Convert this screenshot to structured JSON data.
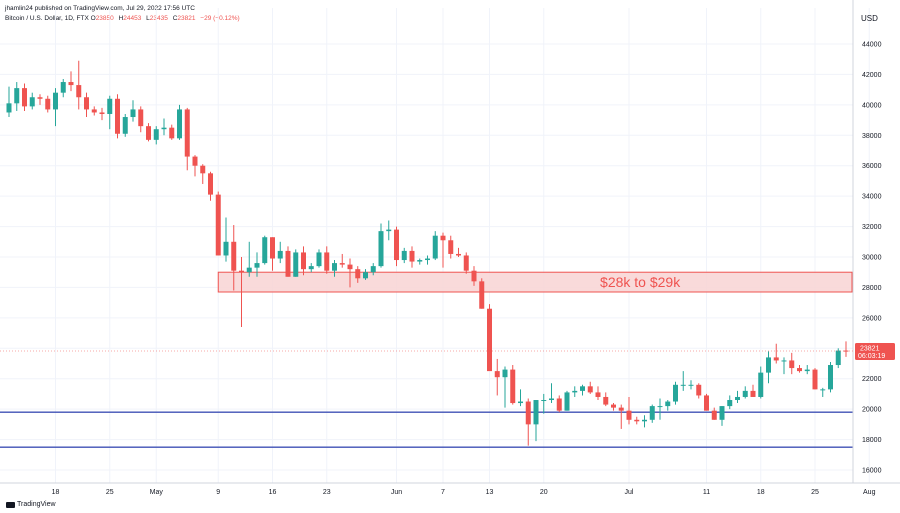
{
  "header": {
    "published_by": "jhamlin24 published on TradingView.com, Jul 29, 2022 17:56 UTC"
  },
  "legend": {
    "symbol": "Bitcoin / U.S. Dollar, 1D, FTX",
    "open_label": "O",
    "open": "23850",
    "high_label": "H",
    "high": "24453",
    "low_label": "L",
    "low": "23435",
    "close_label": "C",
    "close": "23821",
    "change": "−29 (−0.12%)"
  },
  "brand": {
    "name": "TradingView"
  },
  "colors": {
    "up": "#26a69a",
    "down": "#ef5350",
    "support": "#3f51b5",
    "zone_fill": "#f8d3d3",
    "zone_border": "#ef5350"
  },
  "chart_data": {
    "type": "candlestick",
    "y_axis_label": "USD",
    "ylim": [
      15000,
      45000
    ],
    "yticks": [
      16000,
      18000,
      20000,
      22000,
      24000,
      26000,
      28000,
      30000,
      32000,
      34000,
      36000,
      38000,
      40000,
      42000,
      44000
    ],
    "x_start": "2022-04-12",
    "x_ticks": [
      {
        "date": "2022-04-18",
        "label": "18"
      },
      {
        "date": "2022-04-25",
        "label": "25"
      },
      {
        "date": "2022-05-01",
        "label": "May"
      },
      {
        "date": "2022-05-09",
        "label": "9"
      },
      {
        "date": "2022-05-16",
        "label": "16"
      },
      {
        "date": "2022-05-23",
        "label": "23"
      },
      {
        "date": "2022-06-01",
        "label": "Jun"
      },
      {
        "date": "2022-06-07",
        "label": "7"
      },
      {
        "date": "2022-06-13",
        "label": "13"
      },
      {
        "date": "2022-06-20",
        "label": "20"
      },
      {
        "date": "2022-07-01",
        "label": "Jul"
      },
      {
        "date": "2022-07-11",
        "label": "11"
      },
      {
        "date": "2022-07-18",
        "label": "18"
      },
      {
        "date": "2022-07-25",
        "label": "25"
      },
      {
        "date": "2022-08-01",
        "label": "Aug"
      }
    ],
    "candles": [
      {
        "date": "2022-04-12",
        "o": 39500,
        "h": 41200,
        "l": 39200,
        "c": 40100
      },
      {
        "date": "2022-04-13",
        "o": 40100,
        "h": 41500,
        "l": 39600,
        "c": 41100
      },
      {
        "date": "2022-04-14",
        "o": 41100,
        "h": 41400,
        "l": 39600,
        "c": 39900
      },
      {
        "date": "2022-04-15",
        "o": 39900,
        "h": 40800,
        "l": 39700,
        "c": 40500
      },
      {
        "date": "2022-04-16",
        "o": 40500,
        "h": 40700,
        "l": 40000,
        "c": 40400
      },
      {
        "date": "2022-04-17",
        "o": 40400,
        "h": 40600,
        "l": 39500,
        "c": 39700
      },
      {
        "date": "2022-04-18",
        "o": 39700,
        "h": 41100,
        "l": 38600,
        "c": 40800
      },
      {
        "date": "2022-04-19",
        "o": 40800,
        "h": 41700,
        "l": 40500,
        "c": 41500
      },
      {
        "date": "2022-04-20",
        "o": 41500,
        "h": 42200,
        "l": 40900,
        "c": 41300
      },
      {
        "date": "2022-04-21",
        "o": 41300,
        "h": 42900,
        "l": 39700,
        "c": 40500
      },
      {
        "date": "2022-04-22",
        "o": 40500,
        "h": 40800,
        "l": 39200,
        "c": 39700
      },
      {
        "date": "2022-04-23",
        "o": 39700,
        "h": 39900,
        "l": 39300,
        "c": 39500
      },
      {
        "date": "2022-04-24",
        "o": 39500,
        "h": 39800,
        "l": 39000,
        "c": 39400
      },
      {
        "date": "2022-04-25",
        "o": 39400,
        "h": 40600,
        "l": 38400,
        "c": 40400
      },
      {
        "date": "2022-04-26",
        "o": 40400,
        "h": 40700,
        "l": 37800,
        "c": 38100
      },
      {
        "date": "2022-04-27",
        "o": 38100,
        "h": 39400,
        "l": 37900,
        "c": 39200
      },
      {
        "date": "2022-04-28",
        "o": 39200,
        "h": 40300,
        "l": 38900,
        "c": 39700
      },
      {
        "date": "2022-04-29",
        "o": 39700,
        "h": 39900,
        "l": 38200,
        "c": 38600
      },
      {
        "date": "2022-04-30",
        "o": 38600,
        "h": 38800,
        "l": 37600,
        "c": 37700
      },
      {
        "date": "2022-05-01",
        "o": 37700,
        "h": 38600,
        "l": 37400,
        "c": 38400
      },
      {
        "date": "2022-05-02",
        "o": 38400,
        "h": 39100,
        "l": 38000,
        "c": 38500
      },
      {
        "date": "2022-05-03",
        "o": 38500,
        "h": 38700,
        "l": 37700,
        "c": 37800
      },
      {
        "date": "2022-05-04",
        "o": 37800,
        "h": 40000,
        "l": 37700,
        "c": 39700
      },
      {
        "date": "2022-05-05",
        "o": 39700,
        "h": 39800,
        "l": 35700,
        "c": 36600
      },
      {
        "date": "2022-05-06",
        "o": 36600,
        "h": 36700,
        "l": 35300,
        "c": 36000
      },
      {
        "date": "2022-05-07",
        "o": 36000,
        "h": 36100,
        "l": 34800,
        "c": 35500
      },
      {
        "date": "2022-05-08",
        "o": 35500,
        "h": 35600,
        "l": 33700,
        "c": 34100
      },
      {
        "date": "2022-05-09",
        "o": 34100,
        "h": 34300,
        "l": 30100,
        "c": 30100
      },
      {
        "date": "2022-05-10",
        "o": 30100,
        "h": 32600,
        "l": 29700,
        "c": 31000
      },
      {
        "date": "2022-05-11",
        "o": 31000,
        "h": 32100,
        "l": 27800,
        "c": 29100
      },
      {
        "date": "2022-05-12",
        "o": 29100,
        "h": 30000,
        "l": 25400,
        "c": 29000
      },
      {
        "date": "2022-05-13",
        "o": 29000,
        "h": 31000,
        "l": 28700,
        "c": 29300
      },
      {
        "date": "2022-05-14",
        "o": 29300,
        "h": 30300,
        "l": 28700,
        "c": 29600
      },
      {
        "date": "2022-05-15",
        "o": 29600,
        "h": 31400,
        "l": 29500,
        "c": 31300
      },
      {
        "date": "2022-05-16",
        "o": 31300,
        "h": 31300,
        "l": 29100,
        "c": 29900
      },
      {
        "date": "2022-05-17",
        "o": 29900,
        "h": 31000,
        "l": 29600,
        "c": 30400
      },
      {
        "date": "2022-05-18",
        "o": 30400,
        "h": 30700,
        "l": 28700,
        "c": 28700
      },
      {
        "date": "2022-05-19",
        "o": 28700,
        "h": 30500,
        "l": 28700,
        "c": 30300
      },
      {
        "date": "2022-05-20",
        "o": 30300,
        "h": 30700,
        "l": 28800,
        "c": 29200
      },
      {
        "date": "2022-05-21",
        "o": 29200,
        "h": 29600,
        "l": 29000,
        "c": 29400
      },
      {
        "date": "2022-05-22",
        "o": 29400,
        "h": 30500,
        "l": 29300,
        "c": 30300
      },
      {
        "date": "2022-05-23",
        "o": 30300,
        "h": 30700,
        "l": 28900,
        "c": 29100
      },
      {
        "date": "2022-05-24",
        "o": 29100,
        "h": 29800,
        "l": 28700,
        "c": 29600
      },
      {
        "date": "2022-05-25",
        "o": 29600,
        "h": 30200,
        "l": 29300,
        "c": 29500
      },
      {
        "date": "2022-05-26",
        "o": 29500,
        "h": 29900,
        "l": 28000,
        "c": 29200
      },
      {
        "date": "2022-05-27",
        "o": 29200,
        "h": 29400,
        "l": 28300,
        "c": 28600
      },
      {
        "date": "2022-05-28",
        "o": 28600,
        "h": 29200,
        "l": 28500,
        "c": 29000
      },
      {
        "date": "2022-05-29",
        "o": 29000,
        "h": 29600,
        "l": 28800,
        "c": 29400
      },
      {
        "date": "2022-05-30",
        "o": 29400,
        "h": 32200,
        "l": 29300,
        "c": 31700
      },
      {
        "date": "2022-05-31",
        "o": 31700,
        "h": 32400,
        "l": 31100,
        "c": 31800
      },
      {
        "date": "2022-06-01",
        "o": 31800,
        "h": 32000,
        "l": 29400,
        "c": 29800
      },
      {
        "date": "2022-06-02",
        "o": 29800,
        "h": 30600,
        "l": 29600,
        "c": 30400
      },
      {
        "date": "2022-06-03",
        "o": 30400,
        "h": 30700,
        "l": 29300,
        "c": 29700
      },
      {
        "date": "2022-06-04",
        "o": 29700,
        "h": 29900,
        "l": 29500,
        "c": 29800
      },
      {
        "date": "2022-06-05",
        "o": 29800,
        "h": 30100,
        "l": 29500,
        "c": 29900
      },
      {
        "date": "2022-06-06",
        "o": 29900,
        "h": 31700,
        "l": 29800,
        "c": 31400
      },
      {
        "date": "2022-06-07",
        "o": 31400,
        "h": 31600,
        "l": 29300,
        "c": 31100
      },
      {
        "date": "2022-06-08",
        "o": 31100,
        "h": 31400,
        "l": 29900,
        "c": 30200
      },
      {
        "date": "2022-06-09",
        "o": 30200,
        "h": 30600,
        "l": 30000,
        "c": 30100
      },
      {
        "date": "2022-06-10",
        "o": 30100,
        "h": 30300,
        "l": 28900,
        "c": 29100
      },
      {
        "date": "2022-06-11",
        "o": 29100,
        "h": 29400,
        "l": 28100,
        "c": 28400
      },
      {
        "date": "2022-06-12",
        "o": 28400,
        "h": 28600,
        "l": 26600,
        "c": 26600
      },
      {
        "date": "2022-06-13",
        "o": 26600,
        "h": 26900,
        "l": 22600,
        "c": 22500
      },
      {
        "date": "2022-06-14",
        "o": 22500,
        "h": 23300,
        "l": 20900,
        "c": 22100
      },
      {
        "date": "2022-06-15",
        "o": 22100,
        "h": 22800,
        "l": 20100,
        "c": 22600
      },
      {
        "date": "2022-06-16",
        "o": 22600,
        "h": 22900,
        "l": 20300,
        "c": 20400
      },
      {
        "date": "2022-06-17",
        "o": 20400,
        "h": 21300,
        "l": 20200,
        "c": 20500
      },
      {
        "date": "2022-06-18",
        "o": 20500,
        "h": 20700,
        "l": 17600,
        "c": 19000
      },
      {
        "date": "2022-06-19",
        "o": 19000,
        "h": 20600,
        "l": 17900,
        "c": 20600
      },
      {
        "date": "2022-06-20",
        "o": 20600,
        "h": 21000,
        "l": 19700,
        "c": 20600
      },
      {
        "date": "2022-06-21",
        "o": 20600,
        "h": 21700,
        "l": 20400,
        "c": 20700
      },
      {
        "date": "2022-06-22",
        "o": 20700,
        "h": 20900,
        "l": 19800,
        "c": 19900
      },
      {
        "date": "2022-06-23",
        "o": 19900,
        "h": 21200,
        "l": 19900,
        "c": 21100
      },
      {
        "date": "2022-06-24",
        "o": 21100,
        "h": 21500,
        "l": 20800,
        "c": 21200
      },
      {
        "date": "2022-06-25",
        "o": 21200,
        "h": 21600,
        "l": 20900,
        "c": 21500
      },
      {
        "date": "2022-06-26",
        "o": 21500,
        "h": 21800,
        "l": 21000,
        "c": 21100
      },
      {
        "date": "2022-06-27",
        "o": 21100,
        "h": 21500,
        "l": 20600,
        "c": 20800
      },
      {
        "date": "2022-06-28",
        "o": 20800,
        "h": 21100,
        "l": 20200,
        "c": 20300
      },
      {
        "date": "2022-06-29",
        "o": 20300,
        "h": 20400,
        "l": 19900,
        "c": 20100
      },
      {
        "date": "2022-06-30",
        "o": 20100,
        "h": 20300,
        "l": 18700,
        "c": 19900
      },
      {
        "date": "2022-07-01",
        "o": 19900,
        "h": 20800,
        "l": 19000,
        "c": 19300
      },
      {
        "date": "2022-07-02",
        "o": 19300,
        "h": 19500,
        "l": 19000,
        "c": 19200
      },
      {
        "date": "2022-07-03",
        "o": 19200,
        "h": 19600,
        "l": 18800,
        "c": 19300
      },
      {
        "date": "2022-07-04",
        "o": 19300,
        "h": 20300,
        "l": 19100,
        "c": 20200
      },
      {
        "date": "2022-07-05",
        "o": 20200,
        "h": 20700,
        "l": 19300,
        "c": 20200
      },
      {
        "date": "2022-07-06",
        "o": 20200,
        "h": 20600,
        "l": 19900,
        "c": 20500
      },
      {
        "date": "2022-07-07",
        "o": 20500,
        "h": 21800,
        "l": 20300,
        "c": 21600
      },
      {
        "date": "2022-07-08",
        "o": 21600,
        "h": 22500,
        "l": 21200,
        "c": 21600
      },
      {
        "date": "2022-07-09",
        "o": 21600,
        "h": 21900,
        "l": 21300,
        "c": 21600
      },
      {
        "date": "2022-07-10",
        "o": 21600,
        "h": 21700,
        "l": 20700,
        "c": 20900
      },
      {
        "date": "2022-07-11",
        "o": 20900,
        "h": 21000,
        "l": 19900,
        "c": 19900
      },
      {
        "date": "2022-07-12",
        "o": 19900,
        "h": 20100,
        "l": 19300,
        "c": 19300
      },
      {
        "date": "2022-07-13",
        "o": 19300,
        "h": 20200,
        "l": 18900,
        "c": 20200
      },
      {
        "date": "2022-07-14",
        "o": 20200,
        "h": 20900,
        "l": 20000,
        "c": 20600
      },
      {
        "date": "2022-07-15",
        "o": 20600,
        "h": 21200,
        "l": 20400,
        "c": 20800
      },
      {
        "date": "2022-07-16",
        "o": 20800,
        "h": 21500,
        "l": 20700,
        "c": 21200
      },
      {
        "date": "2022-07-17",
        "o": 21200,
        "h": 21600,
        "l": 20800,
        "c": 20800
      },
      {
        "date": "2022-07-18",
        "o": 20800,
        "h": 22800,
        "l": 20700,
        "c": 22400
      },
      {
        "date": "2022-07-19",
        "o": 22400,
        "h": 23800,
        "l": 21700,
        "c": 23400
      },
      {
        "date": "2022-07-20",
        "o": 23400,
        "h": 24300,
        "l": 23000,
        "c": 23200
      },
      {
        "date": "2022-07-21",
        "o": 23200,
        "h": 23400,
        "l": 22300,
        "c": 23200
      },
      {
        "date": "2022-07-22",
        "o": 23200,
        "h": 23700,
        "l": 22300,
        "c": 22700
      },
      {
        "date": "2022-07-23",
        "o": 22700,
        "h": 22900,
        "l": 22400,
        "c": 22500
      },
      {
        "date": "2022-07-24",
        "o": 22500,
        "h": 22900,
        "l": 22300,
        "c": 22600
      },
      {
        "date": "2022-07-25",
        "o": 22600,
        "h": 22700,
        "l": 21300,
        "c": 21300
      },
      {
        "date": "2022-07-26",
        "o": 21300,
        "h": 21400,
        "l": 20800,
        "c": 21300
      },
      {
        "date": "2022-07-27",
        "o": 21300,
        "h": 23100,
        "l": 21100,
        "c": 22900
      },
      {
        "date": "2022-07-28",
        "o": 22900,
        "h": 24000,
        "l": 22700,
        "c": 23850
      },
      {
        "date": "2022-07-29",
        "o": 23850,
        "h": 24453,
        "l": 23435,
        "c": 23821
      }
    ],
    "zone": {
      "low": 27700,
      "high": 29000,
      "start": "2022-05-09",
      "end": "2022-08-10",
      "label": "$28k to $29k"
    },
    "support_lines": [
      19800,
      17500
    ],
    "last_price": {
      "value": "23821",
      "countdown": "06:03:19"
    }
  }
}
